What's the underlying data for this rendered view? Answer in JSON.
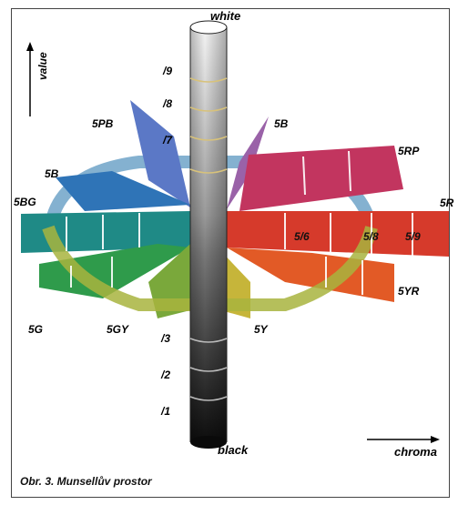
{
  "labels": {
    "top": "white",
    "bottom": "black",
    "value_axis": "value",
    "chroma_axis": "chroma",
    "caption": "Obr. 3. Munsellův prostor",
    "hues": [
      "5PB",
      "5B",
      "5RP",
      "5B",
      "5BG",
      "5R",
      "5YR",
      "5G",
      "5GY",
      "5Y"
    ],
    "value_marks_upper": [
      "/9",
      "/8",
      "/7"
    ],
    "value_marks_lower": [
      "/3",
      "/2",
      "/1"
    ],
    "chroma_marks": [
      "5/6",
      "5/8",
      "5/9"
    ]
  }
}
